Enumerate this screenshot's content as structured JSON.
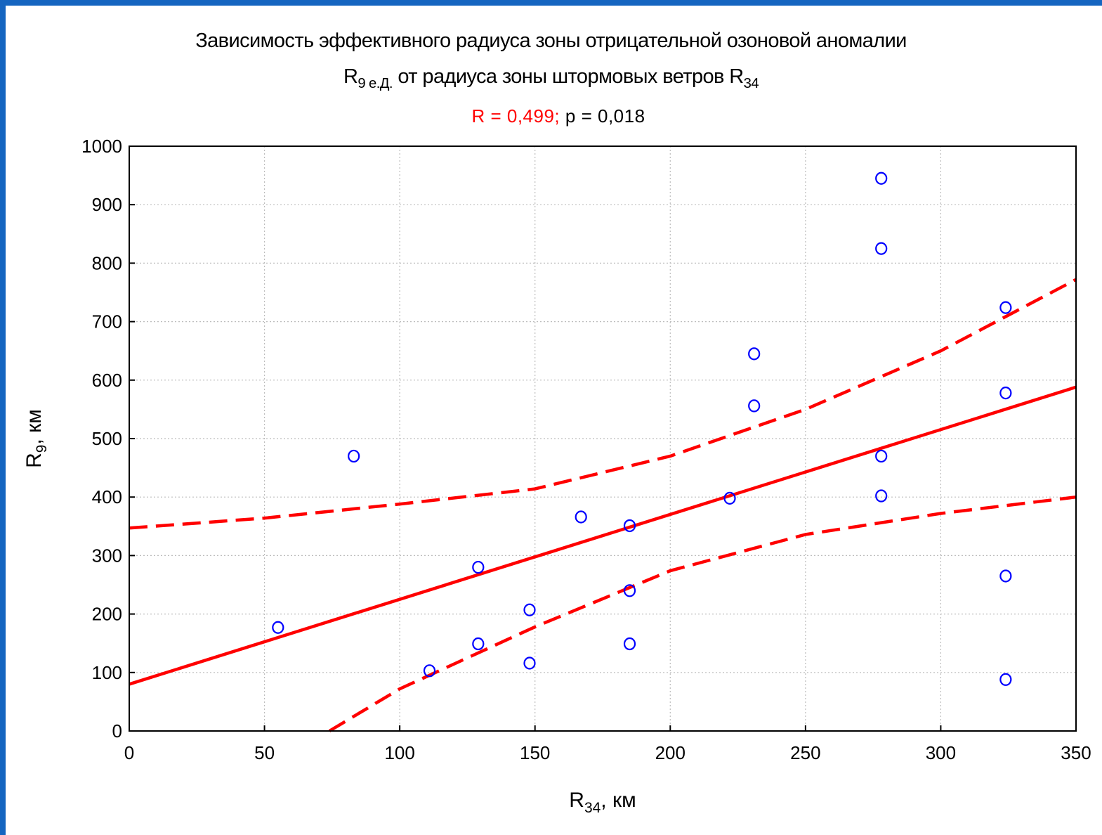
{
  "chart_data": {
    "type": "scatter",
    "title_line1": "Зависимость эффективного радиуса зоны отрицательной озоновой аномалии",
    "title_line2": {
      "r_symbol": "R",
      "r_subscript": "9 е.Д.",
      "middle": " от радиуса зоны штормовых ветров ",
      "r2_symbol": "R",
      "r2_subscript": "34"
    },
    "stats": {
      "r_text": "R = 0,499;",
      "p_text": "p = 0,018"
    },
    "xlabel": {
      "symbol": "R",
      "subscript": "34",
      "unit": ", км"
    },
    "ylabel": {
      "symbol": "R",
      "subscript": "9",
      "unit": ", км"
    },
    "xlim": [
      0,
      350
    ],
    "ylim": [
      0,
      1000
    ],
    "xticks": [
      0,
      50,
      100,
      150,
      200,
      250,
      300,
      350
    ],
    "yticks": [
      0,
      100,
      200,
      300,
      400,
      500,
      600,
      700,
      800,
      900,
      1000
    ],
    "grid": true,
    "colors": {
      "points": "#0000ff",
      "regression": "#ff0000",
      "frame": "#1565c0"
    },
    "points": [
      [
        55,
        177
      ],
      [
        83,
        470
      ],
      [
        111,
        103
      ],
      [
        129,
        280
      ],
      [
        129,
        149
      ],
      [
        148,
        207
      ],
      [
        148,
        116
      ],
      [
        167,
        366
      ],
      [
        185,
        351
      ],
      [
        185,
        240
      ],
      [
        185,
        149
      ],
      [
        222,
        398
      ],
      [
        231,
        645
      ],
      [
        231,
        556
      ],
      [
        278,
        945
      ],
      [
        278,
        825
      ],
      [
        278,
        470
      ],
      [
        278,
        402
      ],
      [
        324,
        724
      ],
      [
        324,
        578
      ],
      [
        324,
        265
      ],
      [
        324,
        88
      ]
    ],
    "regression_line": [
      [
        0,
        80
      ],
      [
        350,
        588
      ]
    ],
    "confidence_upper": [
      [
        0,
        347
      ],
      [
        50,
        364
      ],
      [
        100,
        388
      ],
      [
        150,
        414
      ],
      [
        200,
        470
      ],
      [
        250,
        550
      ],
      [
        300,
        650
      ],
      [
        350,
        772
      ]
    ],
    "confidence_lower": [
      [
        74,
        0
      ],
      [
        100,
        72
      ],
      [
        150,
        178
      ],
      [
        200,
        274
      ],
      [
        250,
        336
      ],
      [
        300,
        372
      ],
      [
        350,
        400
      ]
    ]
  }
}
